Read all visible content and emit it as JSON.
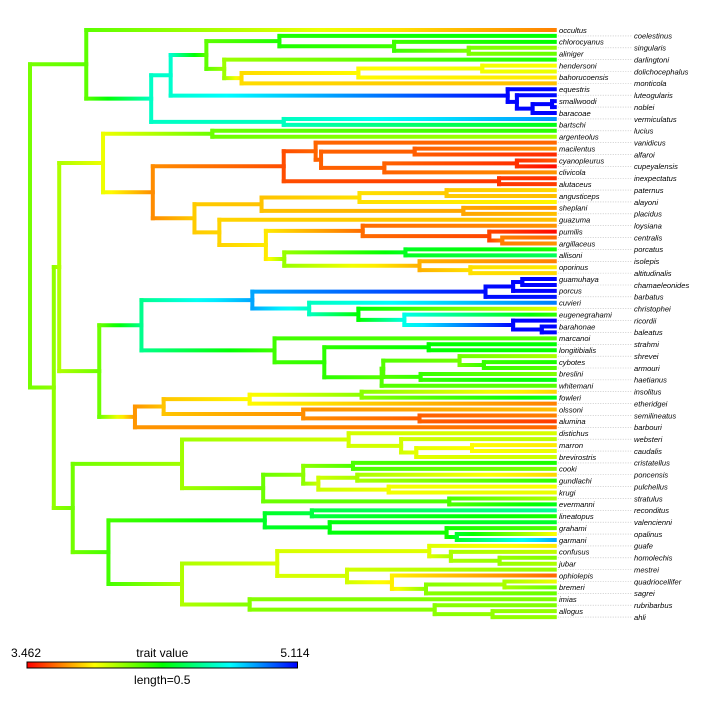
{
  "legend": {
    "min_label": "3.462",
    "max_label": "5.114",
    "title": "trait value",
    "length_label": "length=0.5",
    "min": 3.462,
    "max": 5.114,
    "scale_length": 0.5,
    "colormap": [
      "#ff0000",
      "#ff8000",
      "#ffff00",
      "#00ff00",
      "#00ffff",
      "#0000ff"
    ]
  },
  "tree": [
    0,
    [
      0.104,
      "occultus",
      [
        0.224,
        [
          0.26,
          [
            0.326,
            [
              0.461,
              "coelestinus",
              [
                0.673,
                "chlorocyanus",
                [
                  0.811,
                  "singularis",
                  "aliniger"
                ]
              ]
            ],
            [
              0.359,
              "darlingtoni",
              [
                0.391,
                [
                  0.607,
                  [
                    0.836,
                    "hendersoni",
                    "dolichocephalus"
                  ],
                  "bahorucoensis"
                ],
                "monticola"
              ]
            ]
          ],
          [
            0.883,
            "equestris",
            [
              0.9,
              "luteogularis",
              [
                0.929,
                [
                  0.965,
                  "smallwoodi",
                  "noblei"
                ],
                "baracoae"
              ]
            ]
          ]
        ],
        [
          0.469,
          "vermiculatus",
          "bartschi"
        ]
      ]
    ],
    [
      0.044,
      [
        0.054,
        [
          0.135,
          [
            0.337,
            "lucius",
            "argenteolus"
          ],
          [
            0.227,
            [
              0.469,
              [
                0.528,
                "vanidicus",
                [
                  0.538,
                  [
                    0.711,
                    "macilentus",
                    "alfaroi"
                  ],
                  [
                    0.655,
                    [
                      0.9,
                      "cyanopleurus",
                      "cupeyalensis"
                    ],
                    "clivicola"
                  ]
                ]
              ],
              [
                0.867,
                "inexpectatus",
                "alutaceus"
              ]
            ],
            [
              0.304,
              [
                0.428,
                [
                  0.609,
                  [
                    0.77,
                    "paternus",
                    "angusticeps"
                  ],
                  "alayoni"
                ],
                [
                  0.801,
                  "sheplani",
                  "placidus"
                ]
              ],
              [
                0.35,
                "guazuma",
                [
                  0.436,
                  [
                    0.615,
                    "loysiana",
                    [
                      0.849,
                      "pumilis",
                      [
                        0.873,
                        "centralis",
                        "argillaceus"
                      ]
                    ]
                  ],
                  [
                    0.47,
                    [
                      0.694,
                      "porcatus",
                      "allisoni"
                    ],
                    [
                      0.72,
                      "isolepis",
                      [
                        0.814,
                        "oporinus",
                        "altitudinalis"
                      ]
                    ]
                  ]
                ]
              ]
            ]
          ]
        ],
        [
          0.128,
          [
            0.206,
            [
              0.411,
              [
                0.842,
                [
                  0.893,
                  [
                    0.91,
                    "guamuhaya",
                    "chamaeleonides"
                  ],
                  "porcus"
                ],
                "barbatus"
              ],
              [
                0.516,
                "cuvieri",
                [
                  0.607,
                  "christophei",
                  [
                    0.692,
                    "eugenegrahami",
                    [
                      0.893,
                      "ricordii",
                      [
                        0.946,
                        "barahonae",
                        "baleatus"
                      ]
                    ]
                  ]
                ]
              ]
            ],
            [
              0.452,
              "marcanoi",
              [
                0.544,
                [
                  0.737,
                  "strahmi",
                  "longitibialis"
                ],
                [
                  0.65,
                  [
                    0.653,
                    [
                      0.794,
                      "shrevei",
                      [
                        0.839,
                        "cybotes",
                        "armouri"
                      ]
                    ],
                    [
                      0.722,
                      "breslini",
                      "haetianus"
                    ]
                  ],
                  "whitemani"
                ]
              ]
            ]
          ],
          [
            0.194,
            [
              0.247,
              [
                0.406,
                [
                  0.613,
                  "insolitus",
                  "fowleri"
                ],
                "etheridgei"
              ],
              [
                0.505,
                "olssoni",
                [
                  0.72,
                  "semilineatus",
                  "alumina"
                ]
              ]
            ],
            "barbouri"
          ]
        ]
      ],
      [
        0.079,
        [
          0.281,
          [
            0.589,
            "distichus",
            [
              0.686,
              "websteri",
              [
                0.714,
                [
                  0.817,
                  "marron",
                  "caudalis"
                ],
                "brevirostris"
              ]
            ]
          ],
          [
            0.431,
            [
              0.505,
              [
                0.597,
                "cristatellus",
                "cooki"
              ],
              [
                0.533,
                [
                  0.605,
                  "poncensis",
                  "gundlachi"
                ],
                [
                  0.663,
                  "pulchellus",
                  "krugi"
                ]
              ]
            ],
            [
              0.775,
              "stratulus",
              "evermanni"
            ]
          ]
        ],
        [
          0.145,
          [
            0.434,
            [
              0.521,
              "reconditus",
              "lineatopus"
            ],
            [
              0.554,
              "valencienni",
              [
                0.77,
                "grahami",
                [
                  0.789,
                  "opalinus",
                  "garmani"
                ]
              ]
            ]
          ],
          [
            0.281,
            [
              0.457,
              [
                0.738,
                "guafe",
                [
                  0.778,
                  "confusus",
                  [
                    0.868,
                    "homolechis",
                    "jubar"
                  ]
                ]
              ],
              [
                0.586,
                "mestrei",
                [
                  0.669,
                  "ophiolepis",
                  [
                    0.732,
                    [
                      0.877,
                      "quadriocellifer",
                      "bremeri"
                    ],
                    "sagrei"
                  ]
                ]
              ]
            ],
            [
              0.406,
              "imias",
              [
                0.748,
                "rubribarbus",
                [
                  0.855,
                  "allogus",
                  "ahli"
                ]
              ]
            ]
          ]
        ]
      ]
    ]
  ],
  "tip_height": 0.97,
  "tip_values": {
    "occultus": 3.67,
    "coelestinus": 4.29,
    "chlorocyanus": 4.29,
    "singularis": 4.05,
    "aliniger": 4.12,
    "darlingtoni": 4.25,
    "hendersoni": 3.88,
    "dolichocephalus": 3.91,
    "bahorucoensis": 3.84,
    "monticola": 3.77,
    "equestris": 5.11,
    "luteogularis": 5.1,
    "smallwoodi": 5.11,
    "noblei": 5.11,
    "baracoae": 5.11,
    "vermiculatus": 4.87,
    "bartschi": 4.32,
    "lucius": 4.22,
    "argenteolus": 4.01,
    "vanidicus": 3.63,
    "macilentus": 3.7,
    "alfaroi": 3.53,
    "cyanopleurus": 3.6,
    "cupeyalensis": 3.48,
    "clivicola": 3.7,
    "inexpectatus": 3.54,
    "alutaceus": 3.56,
    "paternus": 3.81,
    "angusticeps": 3.77,
    "alayoni": 3.86,
    "sheplani": 3.69,
    "placidus": 3.77,
    "guazuma": 3.77,
    "loysiana": 3.7,
    "pumilis": 3.48,
    "centralis": 3.63,
    "argillaceus": 3.7,
    "porcatus": 4.25,
    "allisoni": 4.43,
    "isolepis": 3.67,
    "oporinus": 3.84,
    "altitudinalis": 3.81,
    "guamuhaya": 5.11,
    "chamaeleonides": 5.11,
    "porcus": 5.11,
    "barbatus": 5.08,
    "cuvieri": 4.91,
    "christophei": 3.91,
    "eugenegrahami": 4.22,
    "ricordii": 5.11,
    "barahonae": 5.11,
    "baleatus": 5.1,
    "marcanoi": 4.15,
    "strahmi": 4.29,
    "longitibialis": 4.28,
    "shrevei": 4.01,
    "cybotes": 4.25,
    "armouri": 4.15,
    "breslini": 4.08,
    "haetianus": 4.32,
    "whitemani": 4.15,
    "insolitus": 3.81,
    "fowleri": 4.32,
    "etheridgei": 3.67,
    "olssoni": 3.77,
    "semilineatus": 3.67,
    "alumina": 3.56,
    "barbouri": 3.63,
    "distichus": 3.94,
    "websteri": 3.98,
    "marron": 3.84,
    "caudalis": 3.91,
    "brevirostris": 3.96,
    "cristatellus": 4.25,
    "cooki": 4.08,
    "poncensis": 3.81,
    "gundlachi": 4.22,
    "pulchellus": 3.88,
    "krugi": 3.91,
    "stratulus": 4.01,
    "evermanni": 4.32,
    "reconditus": 4.53,
    "lineatopus": 4.25,
    "valencienni": 4.36,
    "grahami": 4.15,
    "opalinus": 3.88,
    "garmani": 4.84,
    "guafe": 3.84,
    "confusus": 3.98,
    "homolechis": 4.08,
    "jubar": 4.01,
    "mestrei": 4.05,
    "ophiolepis": 3.63,
    "quadriocellifer": 3.91,
    "bremeri": 4.12,
    "sagrei": 4.12,
    "imias": 4.08,
    "rubribarbus": 4.08,
    "allogus": 4.05,
    "ahli": 4.05
  }
}
